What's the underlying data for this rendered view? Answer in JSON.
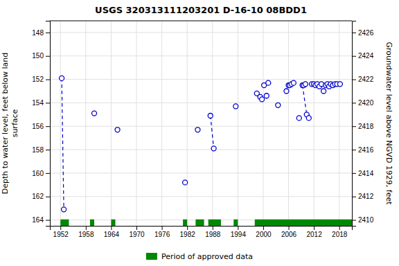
{
  "chart_data": {
    "type": "scatter",
    "title": "USGS 320313111203201 D-16-10 08BDD1",
    "ylabel": "Depth to water level, feet below land\n surface",
    "y2label": "Groundwater level above NGVD 1929, feet",
    "xlim": [
      1949.5,
      2021.0
    ],
    "xticks": [
      1952,
      1958,
      1964,
      1970,
      1976,
      1982,
      1988,
      1994,
      2000,
      2006,
      2012,
      2018
    ],
    "ylim": [
      164.5,
      147.0
    ],
    "yticks": [
      148,
      150,
      152,
      154,
      156,
      158,
      160,
      162,
      164
    ],
    "y2lim": [
      2409.5,
      2427.0
    ],
    "y2ticks": [
      2410,
      2412,
      2414,
      2416,
      2418,
      2420,
      2422,
      2424,
      2426
    ],
    "grid": true,
    "series": [
      {
        "type": "line",
        "line_style": "dashed",
        "color": "#0000cc",
        "x": [
          1952.3,
          1952.8
        ],
        "values": [
          151.9,
          163.1
        ]
      },
      {
        "type": "line",
        "line_style": "dashed",
        "color": "#0000cc",
        "x": [
          1987.5,
          1988.3
        ],
        "values": [
          155.1,
          157.9
        ]
      },
      {
        "type": "line",
        "line_style": "dashed",
        "color": "#0000cc",
        "x": [
          2009.3,
          2010.3
        ],
        "values": [
          152.5,
          155.0
        ]
      },
      {
        "type": "scatter",
        "marker": "circle-open",
        "color": "#0000cc",
        "x": [
          1952.3,
          1952.8,
          1960.0,
          1965.5,
          1981.5,
          1984.5,
          1987.5,
          1988.3,
          1993.5,
          1998.5,
          1999.3,
          1999.7,
          2000.2,
          2000.8,
          2001.2,
          2003.5,
          2005.5,
          2006.0,
          2006.3,
          2006.7,
          2007.2,
          2008.5,
          2009.3,
          2009.6,
          2010.0,
          2010.3,
          2010.8,
          2011.5,
          2012.0,
          2012.4,
          2012.8,
          2013.3,
          2013.8,
          2014.3,
          2014.8,
          2015.2,
          2015.6,
          2016.0,
          2016.5,
          2017.0,
          2017.5,
          2018.2
        ],
        "values": [
          151.9,
          163.1,
          154.9,
          156.3,
          160.8,
          156.3,
          155.1,
          157.9,
          154.3,
          153.2,
          153.5,
          153.7,
          152.5,
          153.4,
          152.3,
          154.2,
          153.0,
          152.5,
          152.5,
          152.4,
          152.3,
          155.3,
          152.5,
          152.5,
          152.4,
          155.0,
          155.3,
          152.4,
          152.4,
          152.5,
          152.4,
          152.6,
          152.4,
          153.0,
          152.5,
          152.4,
          152.6,
          152.4,
          152.5,
          152.4,
          152.4,
          152.4
        ]
      },
      {
        "type": "span",
        "name": "Period of approved data",
        "color": "#008800",
        "ranges": [
          [
            1952,
            1954
          ],
          [
            1959,
            1960
          ],
          [
            1964,
            1965
          ],
          [
            1981,
            1982
          ],
          [
            1984,
            1986
          ],
          [
            1987,
            1990
          ],
          [
            1993,
            1994
          ],
          [
            1998,
            2021
          ]
        ]
      }
    ]
  }
}
